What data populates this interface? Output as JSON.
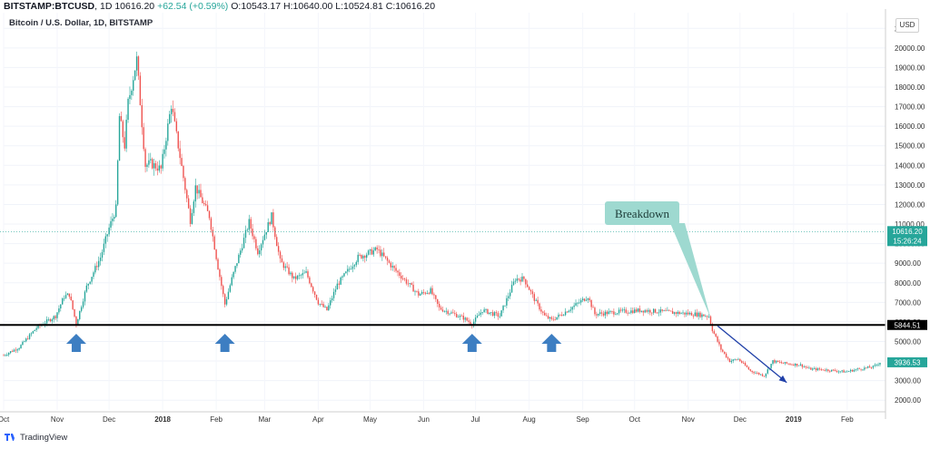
{
  "header": {
    "symbol": "BITSTAMP:BTCUSD",
    "interval": "1D",
    "last": "10616.20",
    "change": "+62.54 (+0.59%)",
    "open_label": "O:",
    "open": "10543.17",
    "high_label": "H:",
    "high": "10640.00",
    "low_label": "L:",
    "low": "10524.81",
    "close_label": "C:",
    "close": "10616.20"
  },
  "subtitle": "Bitcoin / U.S. Dollar, 1D, BITSTAMP",
  "currency_button": "USD",
  "footer": {
    "brand": "TradingView",
    "logo_icon": "tradingview-logo-icon"
  },
  "chart_data": {
    "type": "candlestick",
    "xlabel": "",
    "ylabel": "",
    "ylim": [
      1500,
      21800
    ],
    "grid": true,
    "x_ticks": [
      "Oct",
      "Nov",
      "Dec",
      "2018",
      "Feb",
      "Mar",
      "Apr",
      "May",
      "Jun",
      "Jul",
      "Aug",
      "Sep",
      "Oct",
      "Nov",
      "Dec",
      "2019",
      "Feb"
    ],
    "y_ticks": [
      "2000.00",
      "3000.00",
      "4000.00",
      "5000.00",
      "6000.00",
      "7000.00",
      "8000.00",
      "9000.00",
      "10000.00",
      "11000.00",
      "12000.00",
      "13000.00",
      "14000.00",
      "15000.00",
      "16000.00",
      "17000.00",
      "18000.00",
      "19000.00",
      "20000.00",
      "2"
    ],
    "price_path": [
      [
        "2017-10-01",
        4300
      ],
      [
        "2017-10-10",
        4700
      ],
      [
        "2017-10-20",
        5700
      ],
      [
        "2017-10-31",
        6300
      ],
      [
        "2017-11-05",
        7300
      ],
      [
        "2017-11-08",
        7400
      ],
      [
        "2017-11-12",
        5900
      ],
      [
        "2017-11-18",
        7800
      ],
      [
        "2017-11-26",
        9300
      ],
      [
        "2017-12-01",
        10800
      ],
      [
        "2017-12-05",
        11800
      ],
      [
        "2017-12-07",
        16500
      ],
      [
        "2017-12-10",
        15000
      ],
      [
        "2017-12-12",
        17200
      ],
      [
        "2017-12-17",
        19400
      ],
      [
        "2017-12-22",
        14000
      ],
      [
        "2017-12-25",
        14100
      ],
      [
        "2017-12-31",
        13800
      ],
      [
        "2018-01-06",
        17100
      ],
      [
        "2018-01-10",
        15000
      ],
      [
        "2018-01-17",
        11200
      ],
      [
        "2018-01-20",
        12900
      ],
      [
        "2018-01-28",
        11400
      ],
      [
        "2018-02-02",
        8800
      ],
      [
        "2018-02-06",
        6900
      ],
      [
        "2018-02-10",
        8200
      ],
      [
        "2018-02-20",
        11100
      ],
      [
        "2018-02-25",
        9600
      ],
      [
        "2018-03-05",
        11400
      ],
      [
        "2018-03-10",
        9100
      ],
      [
        "2018-03-18",
        8200
      ],
      [
        "2018-03-25",
        8500
      ],
      [
        "2018-04-01",
        7000
      ],
      [
        "2018-04-06",
        6600
      ],
      [
        "2018-04-12",
        7900
      ],
      [
        "2018-04-24",
        9300
      ],
      [
        "2018-05-05",
        9700
      ],
      [
        "2018-05-15",
        8700
      ],
      [
        "2018-05-29",
        7400
      ],
      [
        "2018-06-05",
        7600
      ],
      [
        "2018-06-10",
        6700
      ],
      [
        "2018-06-24",
        6200
      ],
      [
        "2018-06-29",
        5900
      ],
      [
        "2018-07-05",
        6600
      ],
      [
        "2018-07-15",
        6300
      ],
      [
        "2018-07-24",
        8200
      ],
      [
        "2018-07-29",
        8200
      ],
      [
        "2018-08-05",
        7000
      ],
      [
        "2018-08-10",
        6300
      ],
      [
        "2018-08-14",
        6100
      ],
      [
        "2018-08-20",
        6400
      ],
      [
        "2018-09-04",
        7300
      ],
      [
        "2018-09-08",
        6400
      ],
      [
        "2018-09-20",
        6500
      ],
      [
        "2018-10-05",
        6600
      ],
      [
        "2018-10-20",
        6500
      ],
      [
        "2018-11-05",
        6400
      ],
      [
        "2018-11-13",
        6300
      ],
      [
        "2018-11-15",
        5600
      ],
      [
        "2018-11-20",
        4600
      ],
      [
        "2018-11-25",
        4000
      ],
      [
        "2018-11-30",
        4100
      ],
      [
        "2018-12-07",
        3500
      ],
      [
        "2018-12-15",
        3250
      ],
      [
        "2018-12-20",
        4000
      ],
      [
        "2018-12-25",
        3900
      ],
      [
        "2019-01-05",
        3800
      ],
      [
        "2019-01-10",
        3600
      ],
      [
        "2019-01-20",
        3550
      ],
      [
        "2019-01-31",
        3450
      ],
      [
        "2019-02-08",
        3600
      ],
      [
        "2019-02-16",
        3700
      ],
      [
        "2019-02-20",
        3936.53
      ]
    ],
    "support_level": 5844.51,
    "price_labels": [
      {
        "value": 10616.2,
        "text": "10616.20",
        "sub": "15:26:24",
        "color": "#26a69a"
      },
      {
        "value": 5844.51,
        "text": "5844.51",
        "color": "#000000"
      },
      {
        "value": 3936.53,
        "text": "3936.53",
        "color": "#26a69a"
      }
    ],
    "annotations": {
      "breakdown_text": "Breakdown",
      "breakdown_point": [
        "2018-11-14",
        6200
      ],
      "support_arrows": [
        "2017-11-12",
        "2018-02-06",
        "2018-06-29",
        "2018-08-14"
      ],
      "down_arrow": {
        "from": [
          "2018-11-18",
          5800
        ],
        "to": [
          "2018-12-28",
          2900
        ]
      }
    },
    "colors": {
      "up": "#26a69a",
      "down": "#ef5350",
      "support": "#000000",
      "arrow_up": "#3d7ec2",
      "arrow_down": "#1f3fa8",
      "callout": "#9ed9d0"
    }
  }
}
